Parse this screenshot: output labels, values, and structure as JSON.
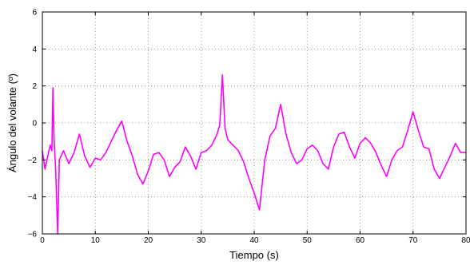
{
  "chart_data": {
    "type": "line",
    "title": "",
    "xlabel": "Tiempo (s)",
    "ylabel": "Ángulo del volante (º)",
    "xlim": [
      0,
      80
    ],
    "ylim": [
      -6,
      6
    ],
    "x_ticks": [
      0,
      10,
      20,
      30,
      40,
      50,
      60,
      70,
      80
    ],
    "y_ticks": [
      -6,
      -4,
      -2,
      0,
      2,
      4,
      6
    ],
    "x_tick_labels": [
      "0",
      "10",
      "20",
      "30",
      "40",
      "50",
      "60",
      "70",
      "80"
    ],
    "y_tick_labels": [
      "−6",
      "−4",
      "−2",
      "0",
      "2",
      "4",
      "6"
    ],
    "grid": true,
    "legend": "none",
    "series": [
      {
        "color": "#ff00ff",
        "x": [
          0,
          0.5,
          1,
          1.5,
          1.8,
          2,
          2.2,
          2.5,
          2.9,
          3.2,
          4,
          5,
          6,
          7,
          8,
          9,
          10,
          11,
          12,
          13,
          14,
          15,
          16,
          17,
          18,
          19,
          20,
          21,
          22,
          23,
          24,
          25,
          26,
          27,
          28,
          29,
          30,
          31,
          32,
          33,
          33.5,
          34,
          34.5,
          35,
          36,
          37,
          38,
          39,
          40,
          41,
          42,
          43,
          44,
          45,
          46,
          47,
          48,
          49,
          50,
          51,
          52,
          53,
          54,
          55,
          56,
          57,
          58,
          59,
          60,
          61,
          62,
          63,
          64,
          65,
          66,
          67,
          68,
          69,
          70,
          71,
          72,
          73,
          74,
          75,
          76,
          77,
          78,
          79,
          80
        ],
        "y": [
          -1.5,
          -2.5,
          -1.8,
          -1.2,
          -1.5,
          1.9,
          -0.8,
          -2.5,
          -6.0,
          -2.0,
          -1.5,
          -2.2,
          -1.6,
          -0.6,
          -1.8,
          -2.4,
          -1.9,
          -2.0,
          -1.6,
          -1.0,
          -0.4,
          0.1,
          -1.0,
          -1.8,
          -2.8,
          -3.3,
          -2.6,
          -1.7,
          -1.6,
          -2.0,
          -2.9,
          -2.4,
          -2.1,
          -1.3,
          -1.8,
          -2.5,
          -1.6,
          -1.5,
          -1.2,
          -0.6,
          -0.1,
          2.6,
          -0.3,
          -0.9,
          -1.2,
          -1.5,
          -2.1,
          -3.0,
          -3.8,
          -4.7,
          -2.0,
          -0.7,
          -0.3,
          1.0,
          -0.6,
          -1.6,
          -2.2,
          -2.0,
          -1.4,
          -1.2,
          -1.5,
          -2.2,
          -2.5,
          -1.3,
          -0.6,
          -0.5,
          -1.3,
          -1.9,
          -1.1,
          -0.8,
          -1.1,
          -1.6,
          -2.3,
          -2.9,
          -2.0,
          -1.5,
          -1.3,
          -0.4,
          0.6,
          -0.4,
          -1.3,
          -1.4,
          -2.5,
          -3.0,
          -2.4,
          -1.8,
          -1.1,
          -1.6,
          -1.6
        ]
      }
    ]
  }
}
